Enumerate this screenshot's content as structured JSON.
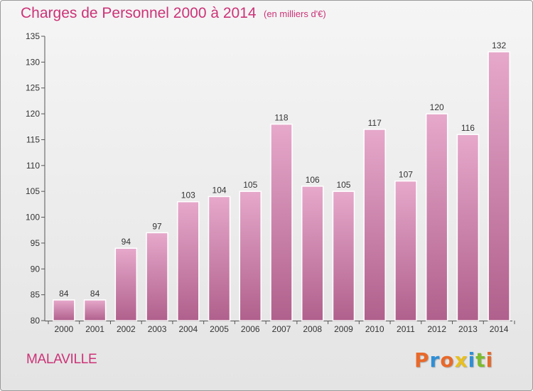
{
  "title": "Charges de Personnel 2000 à 2014",
  "subtitle": "(en milliers d'€)",
  "commune": "MALAVILLE",
  "logo": "Proxiti",
  "colors": {
    "accent": "#cc3377",
    "bar_top": "#e6a8cb",
    "bar_bottom": "#b0608c",
    "logo_letters": [
      "#e8692a",
      "#2e8fd6",
      "#e8692a",
      "#e8c020",
      "#2e8fd6",
      "#7dbb2f",
      "#e8692a"
    ]
  },
  "chart_data": {
    "type": "bar",
    "title": "Charges de Personnel 2000 à 2014",
    "subtitle": "(en milliers d'€)",
    "xlabel": "",
    "ylabel": "",
    "categories": [
      "2000",
      "2001",
      "2002",
      "2003",
      "2004",
      "2005",
      "2006",
      "2007",
      "2008",
      "2009",
      "2010",
      "2011",
      "2012",
      "2013",
      "2014"
    ],
    "values": [
      84,
      84,
      94,
      97,
      103,
      104,
      105,
      118,
      106,
      105,
      117,
      107,
      120,
      116,
      132
    ],
    "ylim": [
      80,
      135
    ],
    "yticks": [
      80,
      85,
      90,
      95,
      100,
      105,
      110,
      115,
      120,
      125,
      130,
      135
    ],
    "grid": false,
    "data_labels": true
  }
}
